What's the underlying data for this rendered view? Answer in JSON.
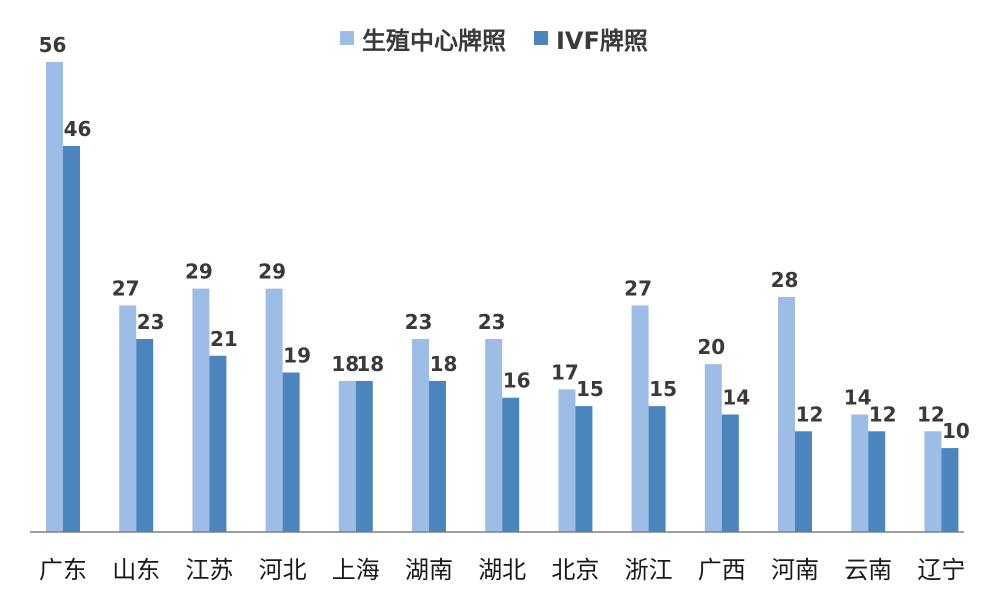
{
  "chart_data": {
    "type": "bar",
    "categories": [
      "广东",
      "山东",
      "江苏",
      "河北",
      "上海",
      "湖南",
      "湖北",
      "北京",
      "浙江",
      "广西",
      "河南",
      "云南",
      "辽宁"
    ],
    "series": [
      {
        "name": "生殖中心牌照",
        "color": "#9dbde6",
        "values": [
          56,
          27,
          29,
          29,
          18,
          23,
          23,
          17,
          27,
          20,
          28,
          14,
          12
        ]
      },
      {
        "name": "IVF牌照",
        "color": "#4a85be",
        "values": [
          46,
          23,
          21,
          19,
          18,
          18,
          16,
          15,
          15,
          14,
          12,
          12,
          10
        ]
      }
    ],
    "ylim": [
      0,
      56
    ],
    "grid": false,
    "legend_position": "top-center"
  },
  "colors": {
    "axis": "#7f7f7f",
    "data_label": "#3a3a3a",
    "category_label": "#1a1a1a"
  }
}
